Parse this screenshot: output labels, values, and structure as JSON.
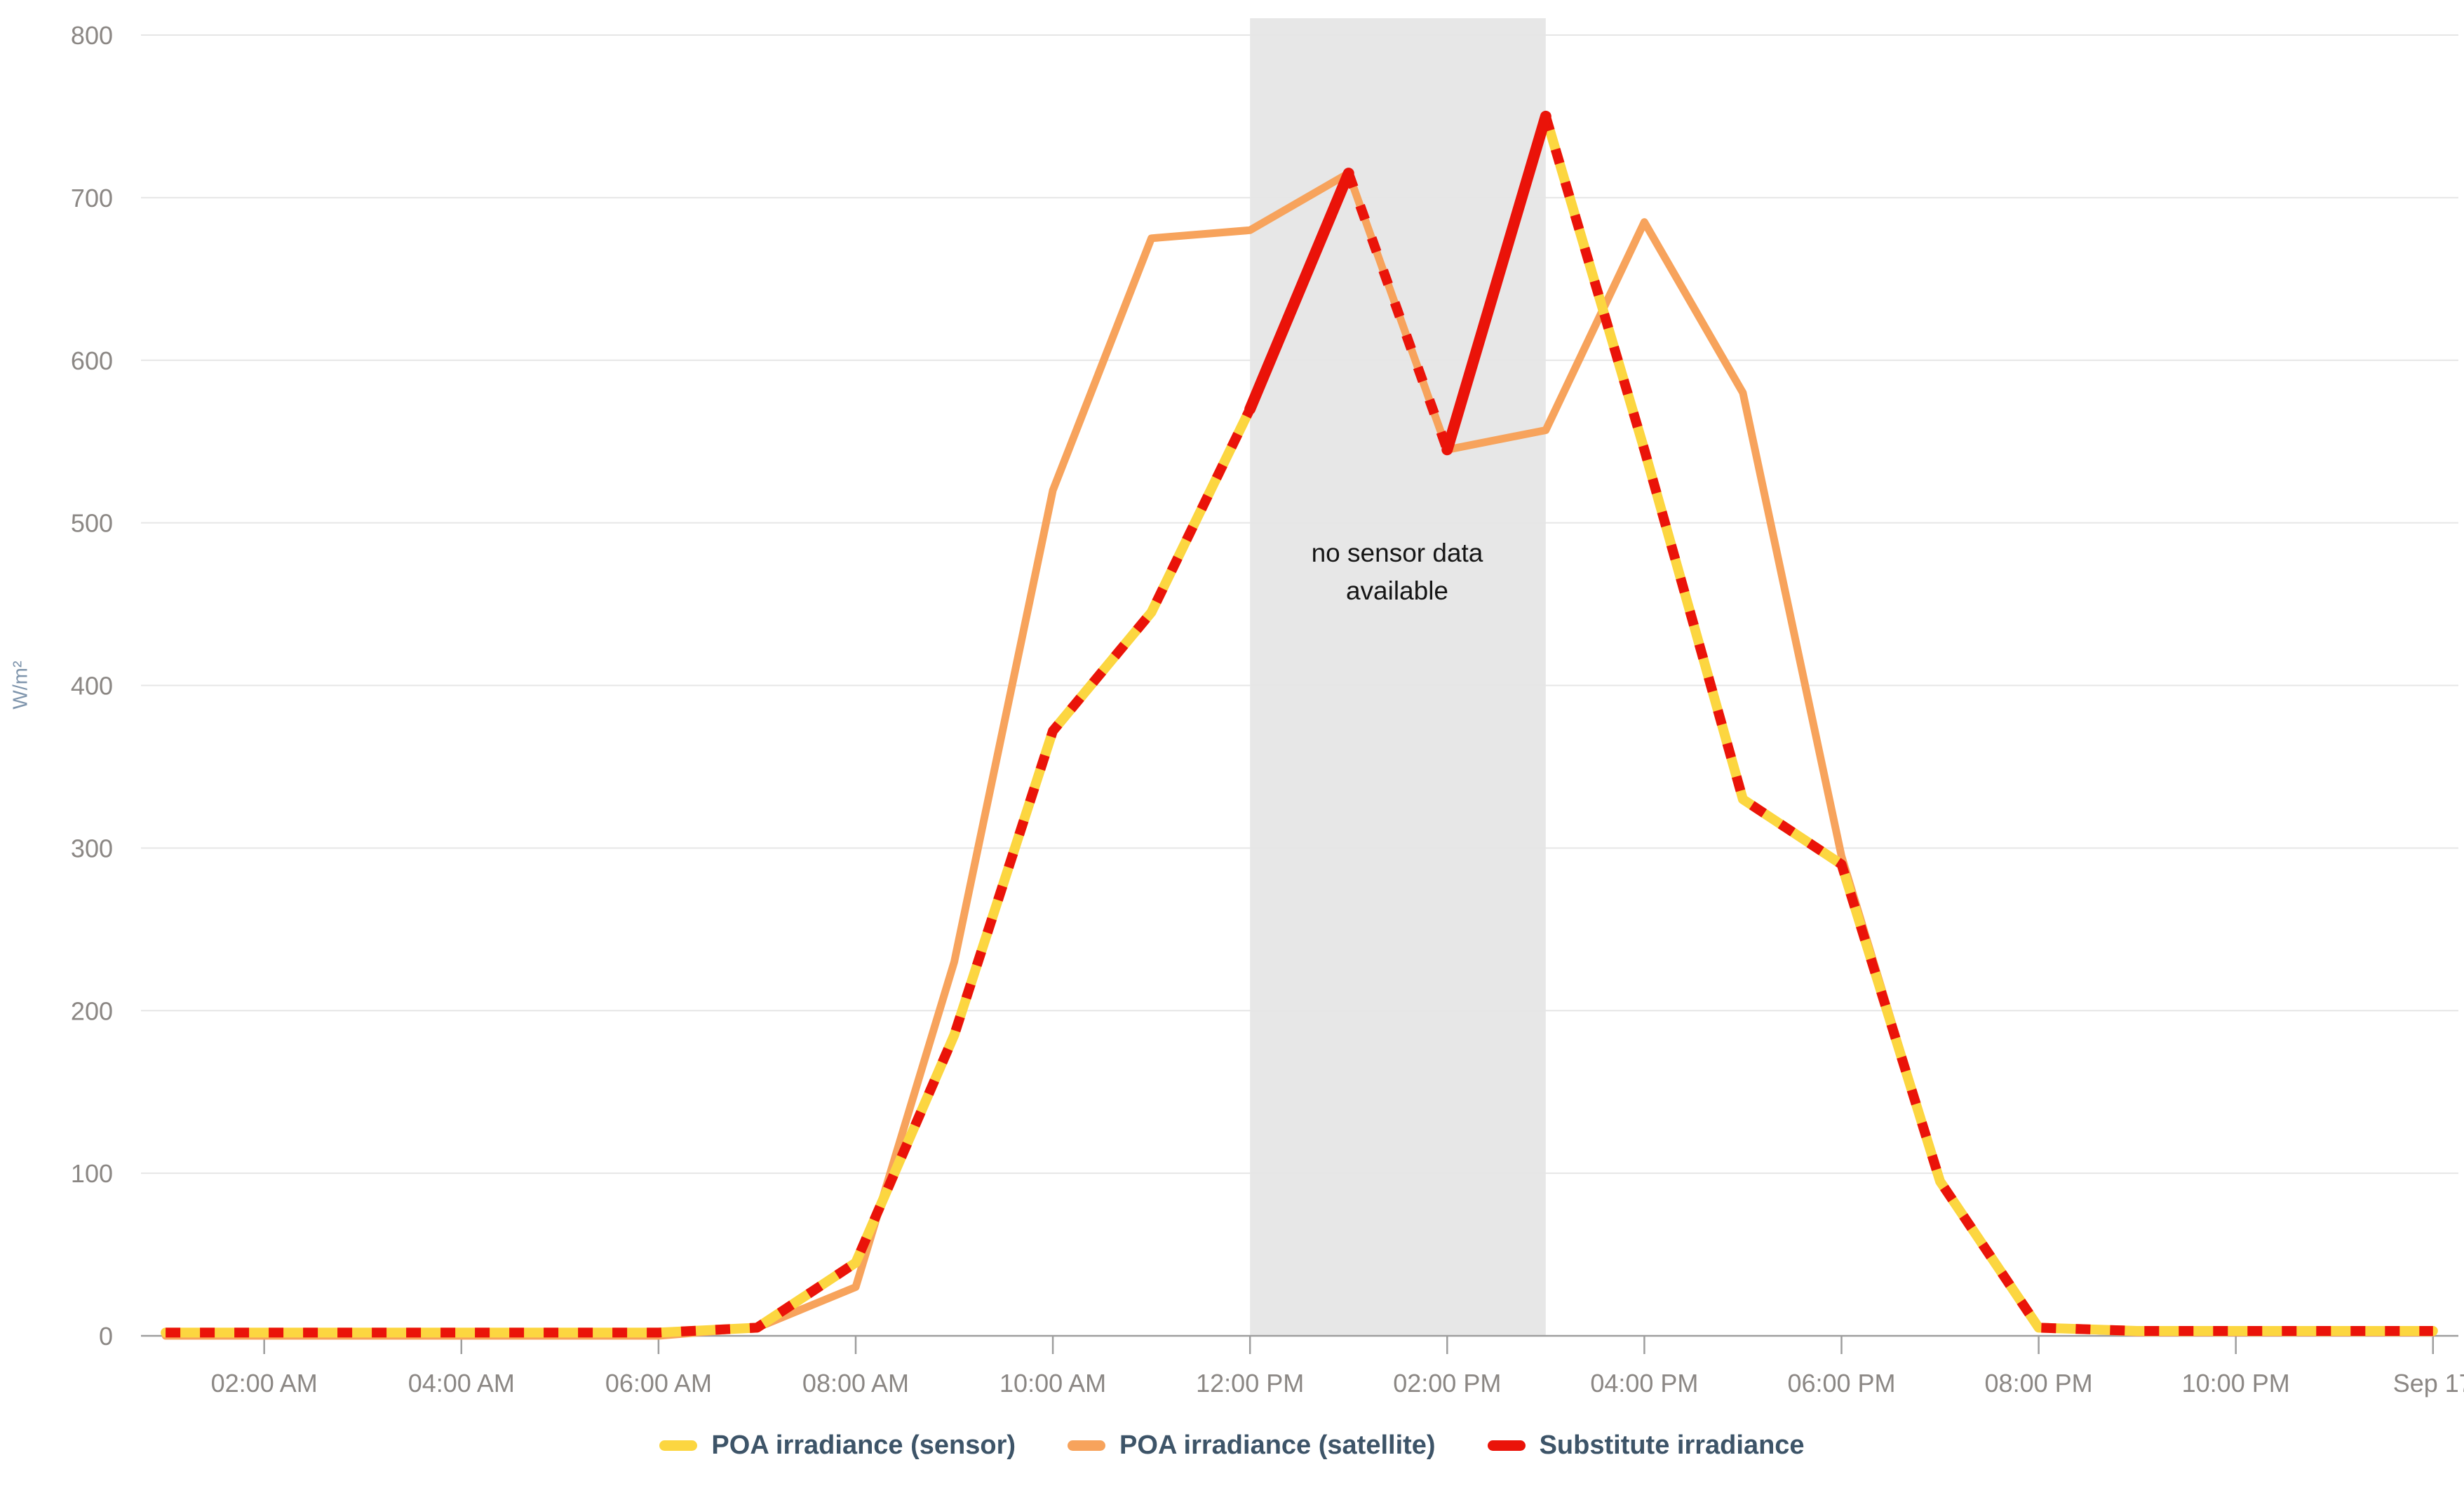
{
  "chart_data": {
    "type": "line",
    "title": "",
    "ylabel": "W/m²",
    "ylim": [
      0,
      800
    ],
    "grid": true,
    "legend_position": "bottom",
    "x_hours": [
      1,
      2,
      3,
      4,
      5,
      6,
      7,
      8,
      9,
      10,
      11,
      12,
      13,
      14,
      15,
      16,
      17,
      18,
      19,
      20,
      21,
      22,
      23,
      24
    ],
    "x_ticks": [
      {
        "hour": 2,
        "label": "02:00 AM"
      },
      {
        "hour": 4,
        "label": "04:00 AM"
      },
      {
        "hour": 6,
        "label": "06:00 AM"
      },
      {
        "hour": 8,
        "label": "08:00 AM"
      },
      {
        "hour": 10,
        "label": "10:00 AM"
      },
      {
        "hour": 12,
        "label": "12:00 PM"
      },
      {
        "hour": 14,
        "label": "02:00 PM"
      },
      {
        "hour": 16,
        "label": "04:00 PM"
      },
      {
        "hour": 18,
        "label": "06:00 PM"
      },
      {
        "hour": 20,
        "label": "08:00 PM"
      },
      {
        "hour": 22,
        "label": "10:00 PM"
      },
      {
        "hour": 24,
        "label": "Sep 17"
      }
    ],
    "yticks": [
      0,
      100,
      200,
      300,
      400,
      500,
      600,
      700,
      800
    ],
    "series": [
      {
        "name": "POA irradiance (sensor)",
        "color": "#fcd640",
        "dash": "solid",
        "width": 14,
        "values": [
          2,
          2,
          2,
          2,
          2,
          2,
          5,
          45,
          185,
          372,
          445,
          570,
          null,
          null,
          750,
          545,
          330,
          290,
          95,
          5,
          3,
          3,
          3,
          3
        ]
      },
      {
        "name": "POA irradiance (satellite)",
        "color": "#f7a35c",
        "dash": "solid",
        "width": 11,
        "values": [
          0,
          0,
          0,
          0,
          0,
          0,
          5,
          30,
          230,
          520,
          675,
          680,
          715,
          545,
          557,
          685,
          580,
          295,
          95,
          5,
          2,
          2,
          2,
          2
        ]
      },
      {
        "name": "Substitute irradiance",
        "color": "#ea1309",
        "dash": "dashed",
        "width": 14,
        "values": [
          2,
          2,
          2,
          2,
          2,
          2,
          5,
          45,
          185,
          372,
          445,
          570,
          715,
          545,
          750,
          545,
          330,
          290,
          95,
          5,
          3,
          3,
          3,
          3
        ],
        "solid_segments_hours": [
          [
            12,
            13
          ],
          [
            14,
            15
          ]
        ]
      }
    ],
    "annotation": {
      "line1": "no sensor data",
      "line2": "available",
      "band_from_hour": 12,
      "band_to_hour": 15
    },
    "colors": {
      "no_data_band": "#e7e7e7",
      "gridline": "#e6e6e6",
      "axis_line": "#9e9e9e",
      "tick_label": "#8b8784",
      "legend_text": "#3d5468",
      "y_axis_title": "#7f95ac",
      "annotation_text": "#161616",
      "background": "#ffffff"
    }
  }
}
